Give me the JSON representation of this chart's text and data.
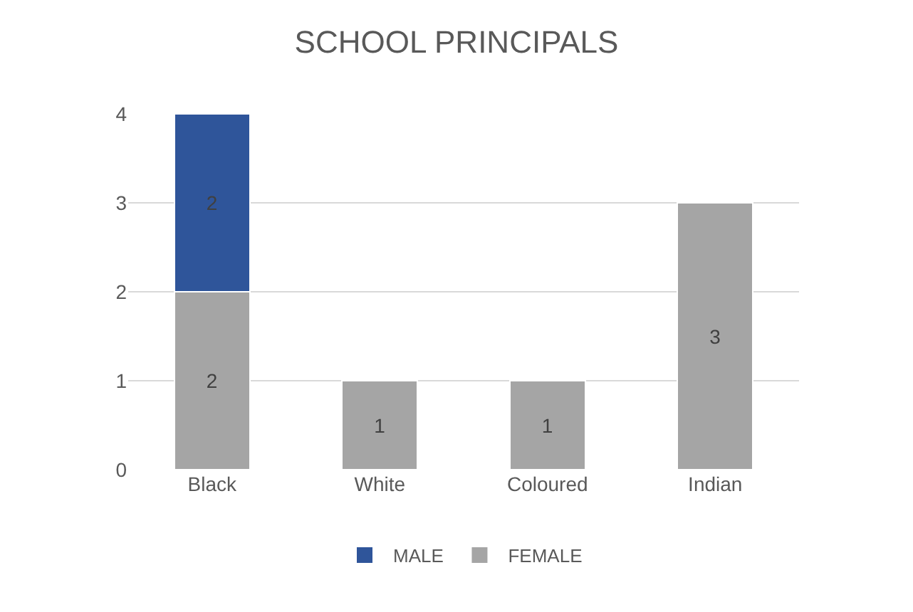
{
  "chart_data": {
    "type": "bar",
    "title": "SCHOOL PRINCIPALS",
    "categories": [
      "Black",
      "White",
      "Coloured",
      "Indian"
    ],
    "series": [
      {
        "name": "FEMALE",
        "color": "#a5a5a5",
        "values": [
          2,
          1,
          1,
          3
        ]
      },
      {
        "name": "MALE",
        "color": "#2f559a",
        "values": [
          2,
          null,
          null,
          null
        ]
      }
    ],
    "stacked": true,
    "data_labels": true,
    "ylim": [
      0,
      4
    ],
    "yticks": [
      0,
      1,
      2,
      3,
      4
    ],
    "grid": "y",
    "legend": "bottom"
  }
}
